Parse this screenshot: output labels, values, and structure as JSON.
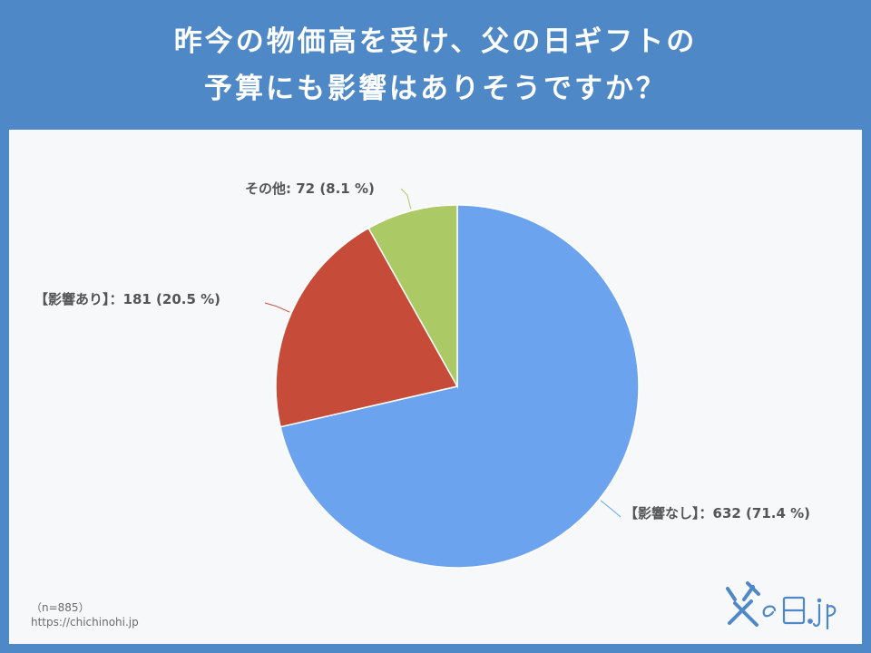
{
  "header": {
    "title_line1": "昨今の物価高を受け、父の日ギフトの",
    "title_line2": "予算にも影響はありそうですか？"
  },
  "chart_data": {
    "type": "pie",
    "slices": [
      {
        "label": "【影響なし】",
        "value": 632,
        "percent": 71.4,
        "color": "#6ba3ef",
        "display": "【影響なし】：632 (71.4 %)"
      },
      {
        "label": "【影響あり】",
        "value": 181,
        "percent": 20.5,
        "color": "#c64b39",
        "display": "【影響あり】：181 (20.5 %)"
      },
      {
        "label": "その他",
        "value": 72,
        "percent": 8.1,
        "color": "#abc964",
        "display": "その他: 72 (8.1 %)"
      }
    ]
  },
  "footer": {
    "n_note": "（n=885）",
    "url": "https://chichinohi.jp"
  },
  "logo": {
    "text": "父の日.jp",
    "color": "#4f88c6"
  }
}
